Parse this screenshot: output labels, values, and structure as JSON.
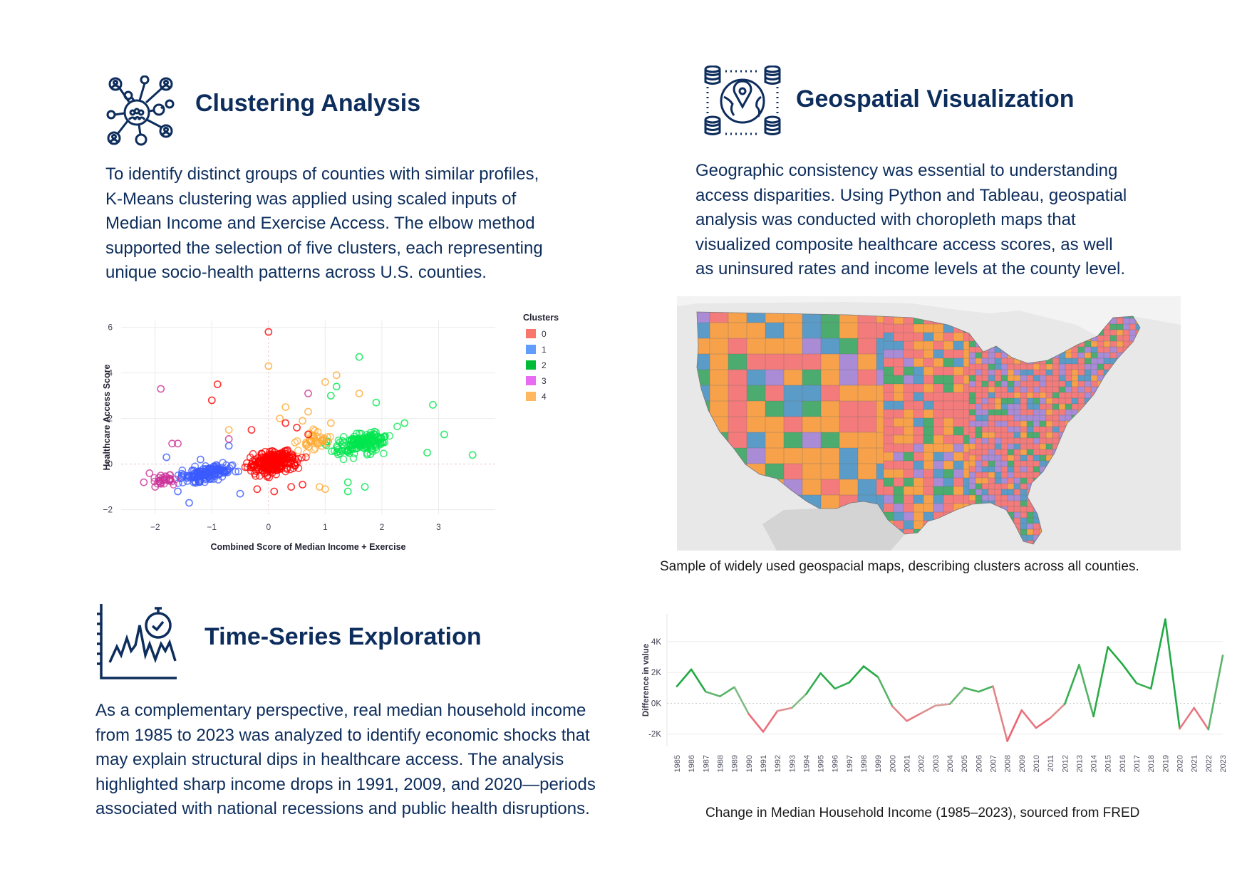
{
  "sections": {
    "clustering": {
      "title": "Clustering Analysis",
      "paragraph": [
        "To identify distinct groups of counties with similar profiles,",
        "K-Means clustering was applied using scaled inputs of",
        "Median Income and Exercise Access. The elbow method",
        "supported the selection of five clusters, each representing",
        "unique socio-health patterns across U.S. counties."
      ],
      "icon": "network-people-icon"
    },
    "geospatial": {
      "title": "Geospatial Visualization",
      "paragraph": [
        "Geographic consistency was essential to understanding",
        "access disparities. Using Python and Tableau, geospatial",
        "analysis was conducted with choropleth maps that",
        "visualized composite healthcare access scores, as well",
        "as uninsured rates and income levels at the county level."
      ],
      "caption": "Sample of widely used geospacial maps, describing clusters across all counties.",
      "icon": "globe-database-icon"
    },
    "timeseries": {
      "title": "Time-Series Exploration",
      "paragraph": [
        "As a complementary perspective, real median household income",
        "from 1985 to 2023 was analyzed to identify economic shocks that",
        "may explain structural dips in healthcare access. The analysis",
        "highlighted sharp income drops in 1991, 2009, and 2020—periods",
        "associated with national recessions and public health disruptions."
      ],
      "caption": "Change in Median Household Income (1985–2023), sourced from FRED",
      "icon": "chart-stopwatch-icon"
    }
  },
  "chart_data": [
    {
      "type": "scatter",
      "xlabel": "Combined Score of Median Income + Exercise",
      "ylabel": "Healthcare Access Score",
      "xlim": [
        -2.6,
        4.0
      ],
      "ylim": [
        -2.2,
        6.3
      ],
      "xticks": [
        -2,
        -1,
        0,
        1,
        2,
        3
      ],
      "yticks": [
        -2,
        0,
        2,
        4,
        6
      ],
      "grid": true,
      "legend_title": "Clusters",
      "legend_position": "top-right",
      "series": [
        {
          "name": "0",
          "color": "#ff0000",
          "legend_color": "#f8766d",
          "points": [
            [
              0.0,
              5.8
            ],
            [
              -0.9,
              3.5
            ],
            [
              -1.0,
              2.8
            ],
            [
              0.5,
              1.6
            ],
            [
              0.3,
              1.8
            ],
            [
              -0.3,
              1.5
            ],
            [
              0.7,
              1.3
            ],
            [
              0.1,
              -1.2
            ],
            [
              -0.2,
              -1.1
            ],
            [
              0.4,
              -1.0
            ],
            [
              0.6,
              -0.9
            ]
          ],
          "cloud": {
            "center": [
              0.1,
              0.1
            ],
            "spread": [
              0.45,
              0.55
            ],
            "xrange": [
              -0.8,
              1.0
            ],
            "count": 260
          }
        },
        {
          "name": "1",
          "color": "#3b5bff",
          "legend_color": "#619cff",
          "points": [
            [
              -1.4,
              -1.7
            ],
            [
              -1.8,
              0.3
            ],
            [
              -1.2,
              0.2
            ],
            [
              -0.7,
              0.8
            ],
            [
              -0.5,
              -1.3
            ],
            [
              -1.6,
              -1.2
            ]
          ],
          "cloud": {
            "center": [
              -1.1,
              -0.4
            ],
            "spread": [
              0.45,
              0.35
            ],
            "xrange": [
              -2.1,
              -0.2
            ],
            "count": 160
          }
        },
        {
          "name": "2",
          "color": "#00e64d",
          "legend_color": "#00ba38",
          "points": [
            [
              1.6,
              4.7
            ],
            [
              1.2,
              3.4
            ],
            [
              1.1,
              3.0
            ],
            [
              1.9,
              2.7
            ],
            [
              2.9,
              2.6
            ],
            [
              3.6,
              0.4
            ],
            [
              3.1,
              1.3
            ],
            [
              2.8,
              0.5
            ],
            [
              2.4,
              1.8
            ],
            [
              1.4,
              -0.8
            ],
            [
              1.7,
              -1.0
            ],
            [
              1.4,
              -1.2
            ]
          ],
          "cloud": {
            "center": [
              1.6,
              0.9
            ],
            "spread": [
              0.5,
              0.55
            ],
            "xrange": [
              0.9,
              3.3
            ],
            "count": 170
          }
        },
        {
          "name": "3",
          "color": "#cc3399",
          "legend_color": "#e76bf3",
          "points": [
            [
              -1.9,
              3.3
            ],
            [
              -1.7,
              0.9
            ],
            [
              -1.6,
              0.9
            ],
            [
              -2.2,
              -0.8
            ],
            [
              -2.0,
              -1.0
            ],
            [
              -1.9,
              -0.5
            ],
            [
              -2.1,
              -0.4
            ],
            [
              -0.7,
              1.1
            ]
          ],
          "cloud": {
            "center": [
              -1.8,
              -0.7
            ],
            "spread": [
              0.25,
              0.25
            ],
            "xrange": [
              -2.4,
              -1.4
            ],
            "count": 30
          }
        },
        {
          "name": "4",
          "color": "#ffaa33",
          "legend_color": "#ffb861",
          "points": [
            [
              0.0,
              4.3
            ],
            [
              1.2,
              3.9
            ],
            [
              1.0,
              3.6
            ],
            [
              1.6,
              3.1
            ],
            [
              0.7,
              2.3
            ],
            [
              0.3,
              2.5
            ],
            [
              0.6,
              1.9
            ],
            [
              1.1,
              1.8
            ],
            [
              -0.7,
              1.5
            ],
            [
              1.0,
              -1.1
            ],
            [
              0.9,
              -1.0
            ],
            [
              0.2,
              2.0
            ]
          ],
          "cloud": {
            "center": [
              0.8,
              1.0
            ],
            "spread": [
              0.3,
              0.5
            ],
            "xrange": [
              0.2,
              1.3
            ],
            "count": 40
          }
        },
        {
          "name": "",
          "color": "#cc3399",
          "legend_color": "",
          "points": [
            [
              0.7,
              3.1
            ]
          ]
        }
      ]
    },
    {
      "type": "line",
      "ylabel": "Difference in value",
      "x": [
        1985,
        1986,
        1987,
        1988,
        1989,
        1990,
        1991,
        1992,
        1993,
        1994,
        1995,
        1996,
        1997,
        1998,
        1999,
        2000,
        2001,
        2002,
        2003,
        2004,
        2005,
        2006,
        2007,
        2008,
        2009,
        2010,
        2011,
        2012,
        2013,
        2014,
        2015,
        2016,
        2017,
        2018,
        2019,
        2020,
        2021,
        2022,
        2023
      ],
      "values": [
        1100,
        2200,
        750,
        450,
        1050,
        -700,
        -1850,
        -500,
        -300,
        600,
        1950,
        950,
        1350,
        2400,
        1700,
        -200,
        -1150,
        -650,
        -150,
        -50,
        1000,
        750,
        1100,
        -2450,
        -450,
        -1600,
        -950,
        -50,
        2500,
        -850,
        3650,
        2550,
        1300,
        950,
        5450,
        -1650,
        -300,
        -1700,
        3100
      ],
      "ylim": [
        -2800,
        5800
      ],
      "yticks": [
        -2000,
        0,
        2000,
        4000
      ],
      "ytick_labels": [
        "-2K",
        "0K",
        "2K",
        "4K"
      ],
      "grid": true,
      "positive_color": "#22aa44",
      "negative_color": "#f06070"
    }
  ],
  "map": {
    "palette": [
      "#f47b7b",
      "#f7a24b",
      "#5b9bc7",
      "#a98bd6",
      "#4cab6e"
    ],
    "land_color": "#dcdcdc"
  }
}
